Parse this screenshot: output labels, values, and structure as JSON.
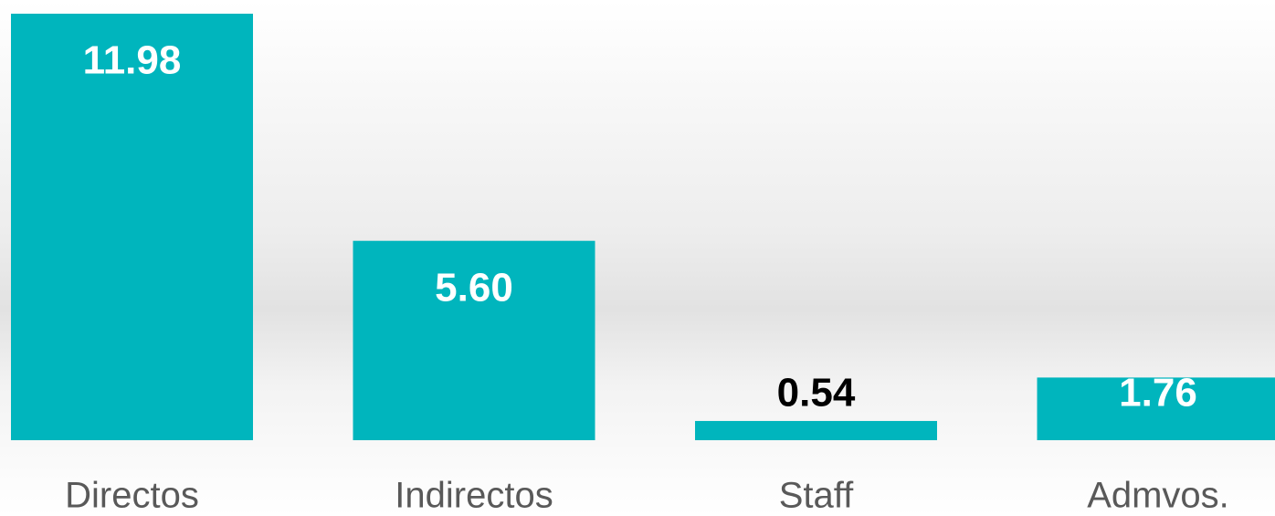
{
  "chart_data": {
    "type": "bar",
    "categories": [
      "Directos",
      "Indirectos",
      "Staff",
      "Admvos."
    ],
    "values": [
      11.98,
      5.6,
      0.54,
      1.76
    ],
    "value_labels": [
      "11.98",
      "5.60",
      "0.54",
      "1.76"
    ],
    "color": "#00b5bd"
  }
}
